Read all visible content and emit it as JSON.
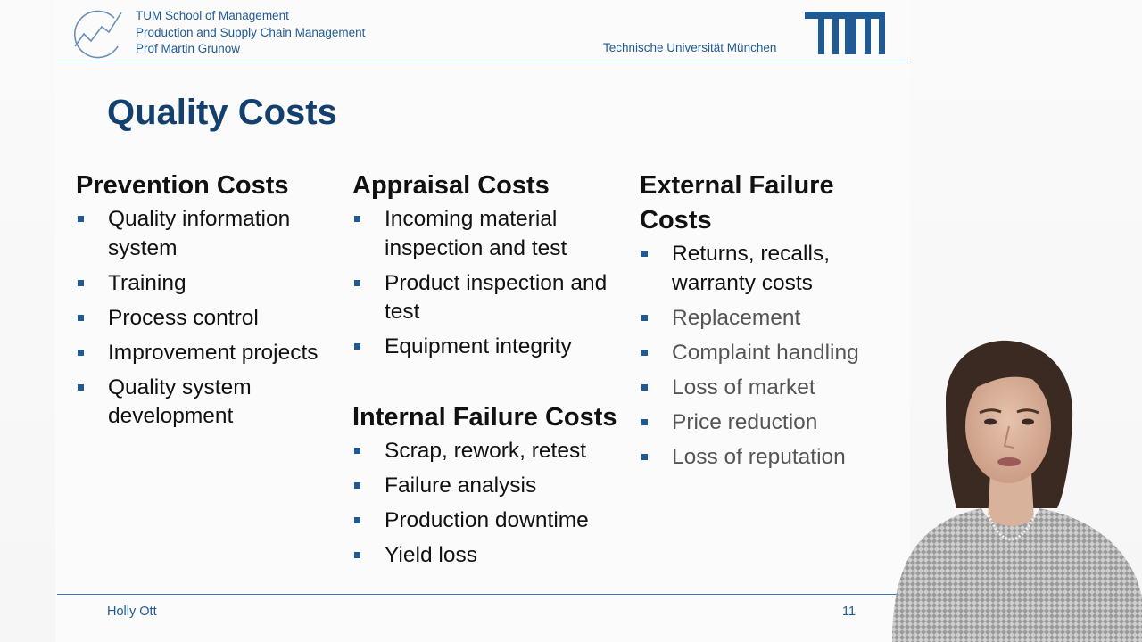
{
  "header": {
    "dept_lines": [
      "TUM School of Management",
      "Production and Supply Chain Management",
      "Prof Martin Grunow"
    ],
    "university": "Technische Universität München",
    "logo_text": "TUM"
  },
  "slide": {
    "title": "Quality Costs",
    "columns": [
      {
        "heading": "Prevention Costs",
        "items": [
          "Quality information system",
          "Training",
          "Process control",
          "Improvement projects",
          "Quality system development"
        ]
      },
      {
        "heading": "Appraisal Costs",
        "items": [
          "Incoming material inspection and test",
          "Product inspection and test",
          "Equipment integrity"
        ]
      },
      {
        "heading": "Internal Failure Costs",
        "items": [
          "Scrap, rework, retest",
          "Failure analysis",
          "Production downtime",
          "Yield loss"
        ]
      },
      {
        "heading": "External Failure Costs",
        "items": [
          "Returns, recalls, warranty costs",
          "Replacement",
          "Complaint handling",
          "Loss of market",
          "Price reduction",
          "Loss of reputation"
        ]
      }
    ]
  },
  "footer": {
    "author": "Holly Ott",
    "page_number": "11"
  },
  "colors": {
    "title": "#14406e",
    "accent_blue": "#1f5a94",
    "rule": "#3a7ab8"
  }
}
